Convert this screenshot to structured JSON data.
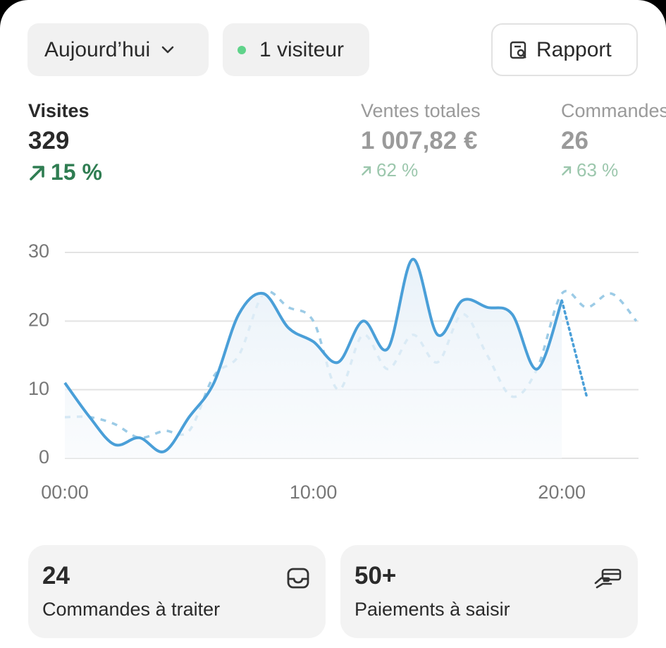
{
  "toolbar": {
    "period": "Aujourd’hui",
    "visitors": "1 visiteur",
    "report": "Rapport"
  },
  "metrics": [
    {
      "label": "Visites",
      "value": "329",
      "change": "15 %"
    },
    {
      "label": "Ventes totales",
      "value": "1 007,82 €",
      "change": "62 %"
    },
    {
      "label": "Commandes",
      "value": "26",
      "change": "63 %"
    }
  ],
  "chart_data": {
    "type": "line",
    "x": [
      0,
      1,
      2,
      3,
      4,
      5,
      6,
      7,
      8,
      9,
      10,
      11,
      12,
      13,
      14,
      15,
      16,
      17,
      18,
      19,
      20,
      21,
      22,
      23
    ],
    "xlim": [
      0,
      23
    ],
    "xticks": [
      {
        "value": 0,
        "label": "00:00"
      },
      {
        "value": 10,
        "label": "10:00"
      },
      {
        "value": 20,
        "label": "20:00"
      }
    ],
    "ylim": [
      0,
      30
    ],
    "yticks": [
      0,
      10,
      20,
      30
    ],
    "grid": true,
    "series": [
      {
        "color": "#4a9fd8",
        "style": "solid",
        "area": true,
        "values": [
          11,
          6,
          2,
          3,
          1,
          6,
          11,
          21,
          24,
          19,
          17,
          14,
          20,
          16,
          29,
          18,
          23,
          22,
          21,
          13,
          23,
          null,
          null,
          null
        ]
      },
      {
        "color": "#4a9fd8",
        "style": "dotted",
        "values": [
          null,
          null,
          null,
          null,
          null,
          null,
          null,
          null,
          null,
          null,
          null,
          null,
          null,
          null,
          null,
          null,
          null,
          null,
          null,
          null,
          23,
          9,
          null,
          null
        ]
      },
      {
        "color": "#9ccbe6",
        "style": "dashed",
        "values": [
          6,
          6,
          5,
          3,
          4,
          4,
          12,
          15,
          24,
          22,
          20,
          10,
          18,
          13,
          18,
          14,
          21,
          15,
          9,
          13,
          24,
          22,
          24,
          20
        ]
      }
    ]
  },
  "cards": [
    {
      "value": "24",
      "label": "Commandes à traiter"
    },
    {
      "value": "50+",
      "label": "Paiements à saisir"
    }
  ]
}
